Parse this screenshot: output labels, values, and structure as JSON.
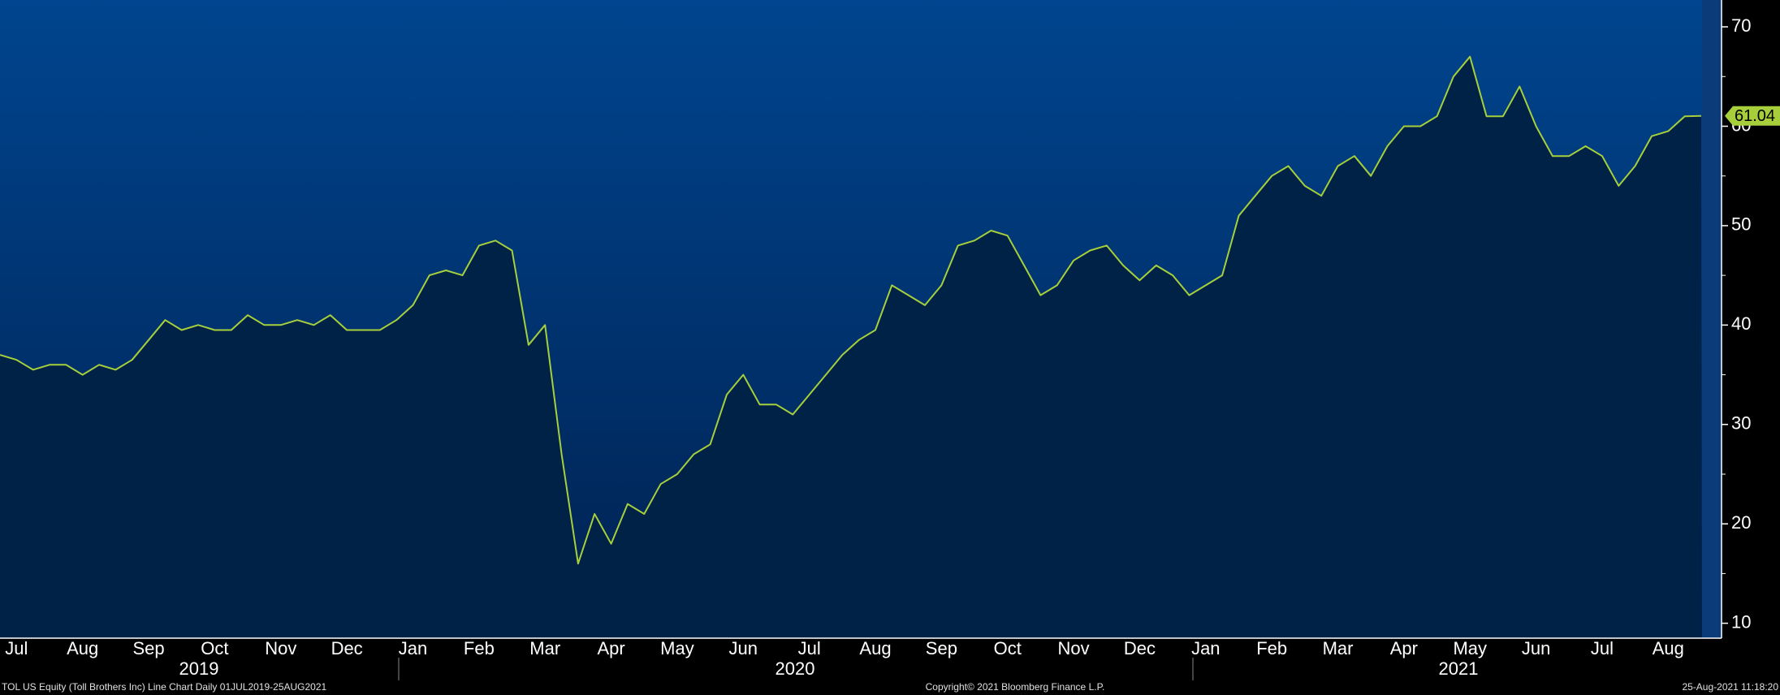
{
  "chart_data": {
    "type": "line",
    "title": "TOL US Equity (Toll Brothers Inc) Line Chart  Daily 01JUL2019-25AUG2021",
    "copyright": "Copyright© 2021 Bloomberg Finance L.P.",
    "timestamp": "25-Aug-2021 11:18:20",
    "years": [
      "2019",
      "2020",
      "2021"
    ],
    "categories": [
      null,
      "Jul",
      null,
      null,
      null,
      "Aug",
      null,
      null,
      null,
      "Sep",
      null,
      null,
      null,
      "Oct",
      null,
      null,
      null,
      "Nov",
      null,
      null,
      null,
      "Dec",
      null,
      null,
      null,
      "Jan",
      null,
      null,
      null,
      "Feb",
      null,
      null,
      null,
      "Mar",
      null,
      null,
      null,
      "Apr",
      null,
      null,
      null,
      "May",
      null,
      null,
      null,
      "Jun",
      null,
      null,
      null,
      "Jul",
      null,
      null,
      null,
      "Aug",
      null,
      null,
      null,
      "Sep",
      null,
      null,
      null,
      "Oct",
      null,
      null,
      null,
      "Nov",
      null,
      null,
      null,
      "Dec",
      null,
      null,
      null,
      "Jan",
      null,
      null,
      null,
      "Feb",
      null,
      null,
      null,
      "Mar",
      null,
      null,
      null,
      "Apr",
      null,
      null,
      null,
      "May",
      null,
      null,
      null,
      "Jun",
      null,
      null,
      null,
      "Jul",
      null,
      null,
      null,
      "Aug",
      null,
      null
    ],
    "series": [
      {
        "name": "TOL US Equity",
        "color": "#a6cf3b",
        "values": [
          37,
          36.5,
          35.5,
          36,
          36,
          35,
          36,
          35.5,
          36.5,
          38.5,
          40.5,
          39.5,
          40,
          39.5,
          39.5,
          41,
          40,
          40,
          40.5,
          40,
          41,
          39.5,
          39.5,
          39.5,
          40.5,
          42,
          45,
          45.5,
          45,
          48,
          48.5,
          47.5,
          38,
          40,
          27,
          16,
          21,
          18,
          22,
          21,
          24,
          25,
          27,
          28,
          33,
          35,
          32,
          32,
          31,
          33,
          35,
          37,
          38.5,
          39.5,
          44,
          43,
          42,
          44,
          48,
          48.5,
          49.5,
          49,
          46,
          43,
          44,
          46.5,
          47.5,
          48,
          46,
          44.5,
          46,
          45,
          43,
          44,
          45,
          51,
          53,
          55,
          56,
          54,
          53,
          56,
          57,
          55,
          58,
          60,
          60,
          61,
          65,
          67,
          61,
          61,
          64,
          60,
          57,
          57,
          58,
          57,
          54,
          56,
          59,
          59.5,
          61,
          61.04
        ],
        "value_labels": [
          null,
          null,
          null,
          null,
          null,
          null,
          null,
          null,
          null,
          null,
          null,
          null,
          null,
          null,
          null,
          null,
          null,
          null,
          null,
          null,
          null,
          null,
          null,
          null,
          null,
          null,
          null,
          null,
          null,
          null,
          null,
          null,
          null,
          null,
          null,
          null,
          null,
          null,
          null,
          null,
          null,
          null,
          null,
          null,
          null,
          null,
          null,
          null,
          null,
          null,
          null,
          null,
          null,
          null,
          null,
          null,
          null,
          null,
          null,
          null,
          null,
          null,
          null,
          null,
          null,
          null,
          null,
          null,
          null,
          null,
          null,
          null,
          null,
          null,
          null,
          null,
          null,
          null,
          null,
          null,
          null,
          null,
          null,
          null,
          null,
          null,
          null,
          null,
          null,
          null,
          null,
          null,
          null,
          null,
          null,
          null,
          null,
          null,
          null,
          null,
          null,
          null,
          null,
          "61.04"
        ]
      }
    ],
    "ylim": [
      8.5,
      72.7
    ],
    "yticks": [
      10,
      20,
      30,
      40,
      50,
      60,
      70
    ]
  }
}
